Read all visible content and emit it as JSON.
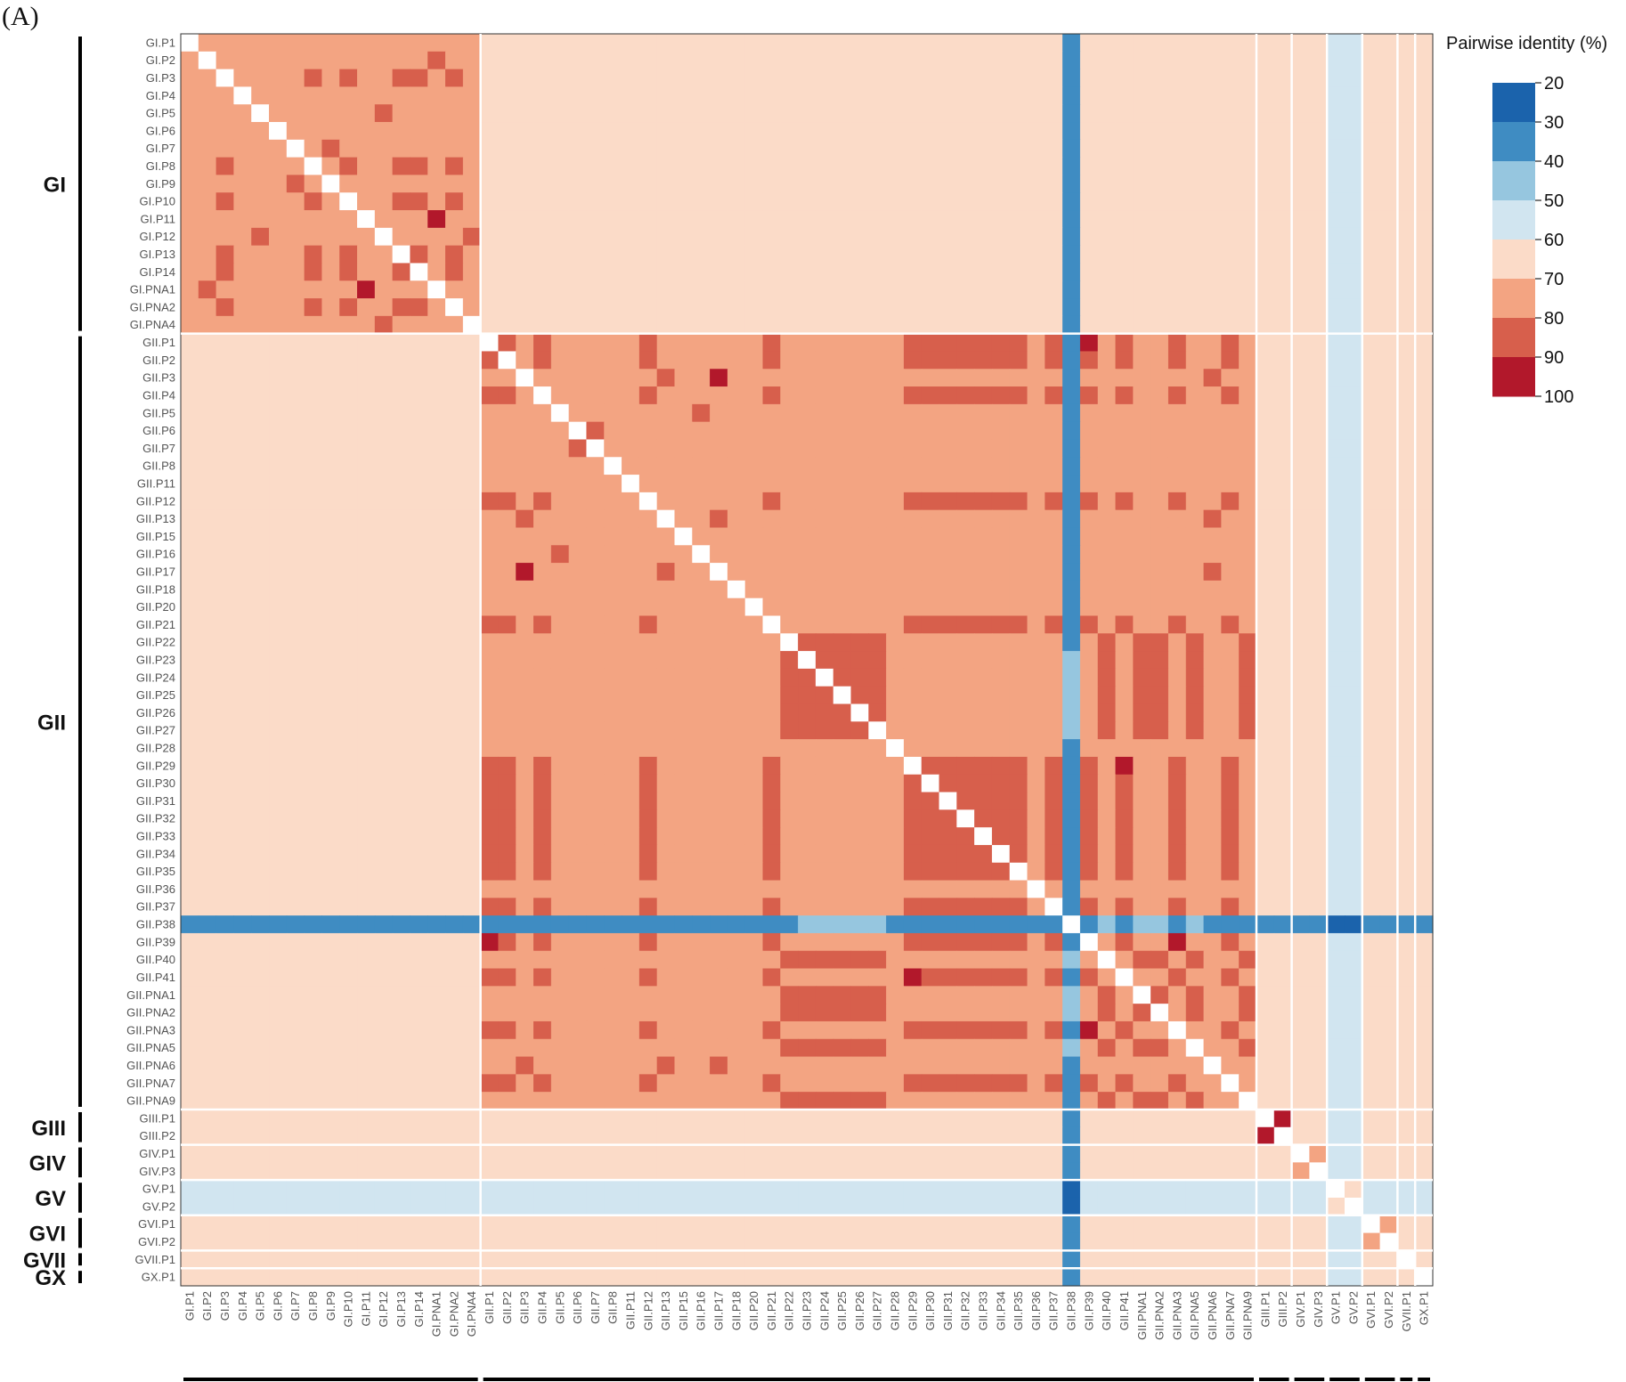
{
  "panel_label": "(A)",
  "chart_data": {
    "type": "heatmap",
    "title": "",
    "legend_title": "Pairwise identity (%)",
    "legend_ticks": [
      "20",
      "30",
      "40",
      "50",
      "60",
      "70",
      "80",
      "90",
      "100"
    ],
    "color_bins": [
      {
        "min": 20,
        "max": 30,
        "color": "#1b63ac"
      },
      {
        "min": 30,
        "max": 40,
        "color": "#3f8cc2"
      },
      {
        "min": 40,
        "max": 50,
        "color": "#96c6df"
      },
      {
        "min": 50,
        "max": 60,
        "color": "#d1e5f0"
      },
      {
        "min": 60,
        "max": 70,
        "color": "#fbdbc8"
      },
      {
        "min": 70,
        "max": 80,
        "color": "#f3a482"
      },
      {
        "min": 80,
        "max": 90,
        "color": "#d75f4c"
      },
      {
        "min": 90,
        "max": 100,
        "color": "#b2182b"
      }
    ],
    "diagonal_color": "#ffffff",
    "labels": [
      "GI.P1",
      "GI.P2",
      "GI.P3",
      "GI.P4",
      "GI.P5",
      "GI.P6",
      "GI.P7",
      "GI.P8",
      "GI.P9",
      "GI.P10",
      "GI.P11",
      "GI.P12",
      "GI.P13",
      "GI.P14",
      "GI.PNA1",
      "GI.PNA2",
      "GI.PNA4",
      "GII.P1",
      "GII.P2",
      "GII.P3",
      "GII.P4",
      "GII.P5",
      "GII.P6",
      "GII.P7",
      "GII.P8",
      "GII.P11",
      "GII.P12",
      "GII.P13",
      "GII.P15",
      "GII.P16",
      "GII.P17",
      "GII.P18",
      "GII.P20",
      "GII.P21",
      "GII.P22",
      "GII.P23",
      "GII.P24",
      "GII.P25",
      "GII.P26",
      "GII.P27",
      "GII.P28",
      "GII.P29",
      "GII.P30",
      "GII.P31",
      "GII.P32",
      "GII.P33",
      "GII.P34",
      "GII.P35",
      "GII.P36",
      "GII.P37",
      "GII.P38",
      "GII.P39",
      "GII.P40",
      "GII.P41",
      "GII.PNA1",
      "GII.PNA2",
      "GII.PNA3",
      "GII.PNA5",
      "GII.PNA6",
      "GII.PNA7",
      "GII.PNA9",
      "GIII.P1",
      "GIII.P2",
      "GIV.P1",
      "GIV.P3",
      "GV.P1",
      "GV.P2",
      "GVI.P1",
      "GVI.P2",
      "GVII.P1",
      "GX.P1"
    ],
    "groups": [
      {
        "name": "GI",
        "start": 0,
        "end": 16
      },
      {
        "name": "GII",
        "start": 17,
        "end": 60
      },
      {
        "name": "GIII",
        "start": 61,
        "end": 62
      },
      {
        "name": "GIV",
        "start": 63,
        "end": 64
      },
      {
        "name": "GV",
        "start": 65,
        "end": 66
      },
      {
        "name": "GVI",
        "start": 67,
        "end": 68
      },
      {
        "name": "GVII",
        "start": 69,
        "end": 69
      },
      {
        "name": "GX",
        "start": 70,
        "end": 70
      }
    ],
    "block_identity": {
      "GI": {
        "GI": 75,
        "GII": 65,
        "GIII": 65,
        "GIV": 65,
        "GV": 55,
        "GVI": 65,
        "GVII": 65,
        "GX": 65
      },
      "GII": {
        "GI": 65,
        "GII": 75,
        "GIII": 65,
        "GIV": 65,
        "GV": 55,
        "GVI": 65,
        "GVII": 65,
        "GX": 65
      },
      "GIII": {
        "GI": 65,
        "GII": 65,
        "GIII": 75,
        "GIV": 65,
        "GV": 55,
        "GVI": 65,
        "GVII": 65,
        "GX": 65
      },
      "GIV": {
        "GI": 65,
        "GII": 65,
        "GIII": 65,
        "GIV": 75,
        "GV": 55,
        "GVI": 65,
        "GVII": 65,
        "GX": 65
      },
      "GV": {
        "GI": 55,
        "GII": 55,
        "GIII": 55,
        "GIV": 55,
        "GV": 65,
        "GVI": 55,
        "GVII": 55,
        "GX": 55
      },
      "GVI": {
        "GI": 65,
        "GII": 65,
        "GIII": 65,
        "GIV": 65,
        "GV": 55,
        "GVI": 75,
        "GVII": 65,
        "GX": 65
      },
      "GVII": {
        "GI": 65,
        "GII": 65,
        "GIII": 65,
        "GIV": 65,
        "GV": 55,
        "GVI": 65,
        "GVII": 75,
        "GX": 65
      },
      "GX": {
        "GI": 65,
        "GII": 65,
        "GIII": 65,
        "GIV": 65,
        "GV": 55,
        "GVI": 65,
        "GVII": 65,
        "GX": 75
      }
    },
    "row_overrides": [
      {
        "label": "GII.P38",
        "default": 35,
        "exceptions": {
          "GV.P1": 25,
          "GV.P2": 25,
          "GII.P23": 45,
          "GII.P24": 45,
          "GII.P25": 45,
          "GII.P26": 45,
          "GII.P27": 45,
          "GII.PNA1": 45,
          "GII.PNA2": 45,
          "GII.PNA5": 45,
          "GII.P40": 45
        }
      }
    ],
    "cells": [
      {
        "row": "GI.P3",
        "col": "GI.P8",
        "v": 85
      },
      {
        "row": "GI.P3",
        "col": "GI.P10",
        "v": 85
      },
      {
        "row": "GI.P3",
        "col": "GI.P13",
        "v": 85
      },
      {
        "row": "GI.P3",
        "col": "GI.P14",
        "v": 85
      },
      {
        "row": "GI.P3",
        "col": "GI.PNA2",
        "v": 85
      },
      {
        "row": "GI.P5",
        "col": "GI.P12",
        "v": 85
      },
      {
        "row": "GI.P7",
        "col": "GI.P9",
        "v": 85
      },
      {
        "row": "GI.P8",
        "col": "GI.P10",
        "v": 85
      },
      {
        "row": "GI.P8",
        "col": "GI.P13",
        "v": 85
      },
      {
        "row": "GI.P8",
        "col": "GI.P14",
        "v": 85
      },
      {
        "row": "GI.P8",
        "col": "GI.PNA2",
        "v": 85
      },
      {
        "row": "GI.P10",
        "col": "GI.P13",
        "v": 85
      },
      {
        "row": "GI.P10",
        "col": "GI.P14",
        "v": 85
      },
      {
        "row": "GI.P10",
        "col": "GI.PNA2",
        "v": 85
      },
      {
        "row": "GI.P11",
        "col": "GI.PNA1",
        "v": 95
      },
      {
        "row": "GI.P2",
        "col": "GI.PNA1",
        "v": 85
      },
      {
        "row": "GI.P12",
        "col": "GI.PNA4",
        "v": 85
      },
      {
        "row": "GI.P13",
        "col": "GI.P14",
        "v": 85
      },
      {
        "row": "GI.P13",
        "col": "GI.PNA2",
        "v": 85
      },
      {
        "row": "GI.P14",
        "col": "GI.PNA2",
        "v": 85
      },
      {
        "row": "GII.P3",
        "col": "GII.P17",
        "v": 95
      },
      {
        "row": "GII.P1",
        "col": "GII.P39",
        "v": 95
      },
      {
        "row": "GII.P39",
        "col": "GII.PNA3",
        "v": 95
      },
      {
        "row": "GII.P29",
        "col": "GII.P41",
        "v": 95
      },
      {
        "row": "GII.P6",
        "col": "GII.P7",
        "v": 85
      },
      {
        "row": "GII.P5",
        "col": "GII.P16",
        "v": 85
      },
      {
        "row": "GII.P3",
        "col": "GII.P13",
        "v": 85
      },
      {
        "row": "GII.P13",
        "col": "GII.P17",
        "v": 85
      },
      {
        "row": "GII.P17",
        "col": "GII.PNA6",
        "v": 85
      },
      {
        "row": "GII.P13",
        "col": "GII.PNA6",
        "v": 85
      },
      {
        "row": "GII.P3",
        "col": "GII.PNA6",
        "v": 85
      },
      {
        "row": "GIII.P1",
        "col": "GIII.P2",
        "v": 95
      },
      {
        "row": "GIV.P1",
        "col": "GIV.P3",
        "v": 75
      },
      {
        "row": "GV.P1",
        "col": "GV.P2",
        "v": 65
      },
      {
        "row": "GVI.P1",
        "col": "GVI.P2",
        "v": 75
      }
    ],
    "gii_highsim_set_a": [
      "GII.P1",
      "GII.P2",
      "GII.P4",
      "GII.P12",
      "GII.P21",
      "GII.P29",
      "GII.P30",
      "GII.P31",
      "GII.P32",
      "GII.P33",
      "GII.P34",
      "GII.P35",
      "GII.P37",
      "GII.P39",
      "GII.P41",
      "GII.PNA3",
      "GII.PNA7"
    ],
    "gii_highsim_set_b": [
      "GII.P22",
      "GII.P23",
      "GII.P24",
      "GII.P25",
      "GII.P26",
      "GII.P27",
      "GII.P40",
      "GII.PNA1",
      "GII.PNA2",
      "GII.PNA5",
      "GII.PNA9"
    ],
    "highsim_value": 85
  }
}
